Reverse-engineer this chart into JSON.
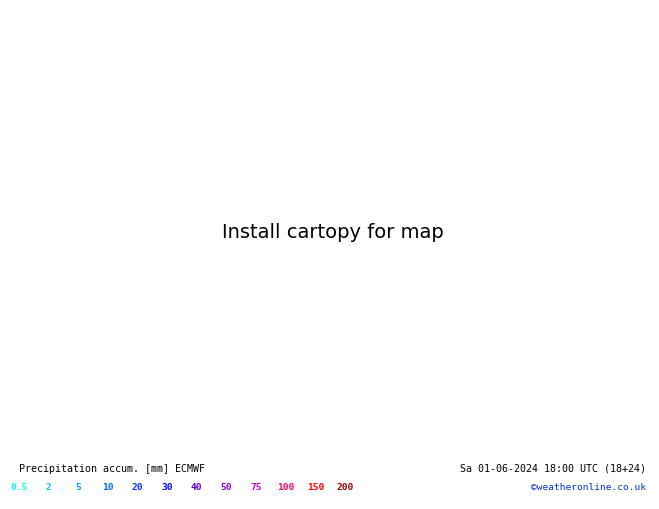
{
  "title_left": "Precipitation accum. [mm] ECMWF",
  "title_right": "Sa 01-06-2024 18:00 UTC (18+24)",
  "credit": "©weatheronline.co.uk",
  "legend_values": [
    "0.5",
    "2",
    "5",
    "10",
    "20",
    "30",
    "40",
    "50",
    "75",
    "100",
    "150",
    "200"
  ],
  "legend_colors": [
    "#00ffff",
    "#00ccff",
    "#0099ff",
    "#0066ff",
    "#0033ff",
    "#0000ee",
    "#6600cc",
    "#9900cc",
    "#cc00cc",
    "#ff0066",
    "#ff0000",
    "#990000"
  ],
  "land_color": "#c8d8a0",
  "sea_color": "#c8dce8",
  "ocean_color": "#b8d0e0",
  "isobar_red": "#cc0000",
  "isobar_blue": "#0000bb",
  "bottom_bg": "#ffffff",
  "fig_width": 6.34,
  "fig_height": 4.9,
  "map_extent": [
    -45,
    45,
    25,
    75
  ],
  "precip_threshold": 0.05
}
